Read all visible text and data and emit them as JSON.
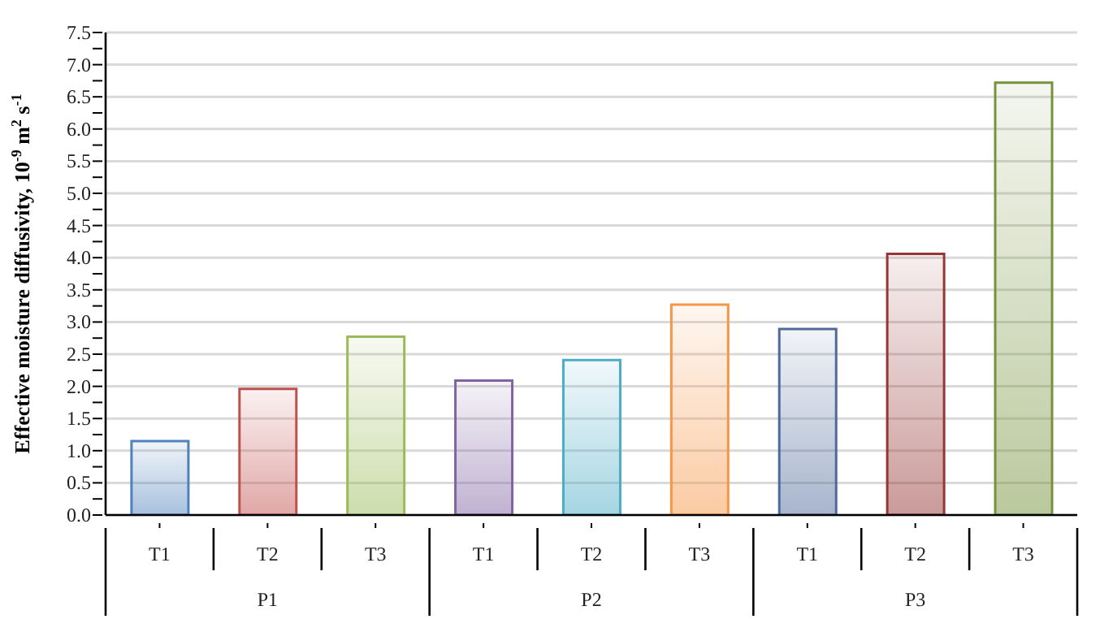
{
  "chart_data": {
    "type": "bar",
    "ylabel": "Effective moisture diffusivity, 10$^{-9}$ m$^{2}$ s$^{-1}$",
    "categories": [
      "T1",
      "T2",
      "T3",
      "T1",
      "T2",
      "T3",
      "T1",
      "T2",
      "T3"
    ],
    "values": [
      1.15,
      1.96,
      2.77,
      2.09,
      2.41,
      3.27,
      2.89,
      4.06,
      6.72
    ],
    "colors": [
      "#4f81bd",
      "#c0504d",
      "#9bbb59",
      "#8064a2",
      "#4bacc6",
      "#f79646",
      "#4f6a9a",
      "#943634",
      "#76923c"
    ],
    "annotations": [
      "P1",
      "P2",
      "P3"
    ],
    "ylim": [
      0,
      7.5
    ],
    "yticks": [
      {
        "value": 0,
        "label": "0.0"
      },
      {
        "value": 0.25,
        "label": null
      },
      {
        "value": 0.5,
        "label": "0.5"
      },
      {
        "value": 0.75,
        "label": null
      },
      {
        "value": 1,
        "label": "1.0"
      },
      {
        "value": 1.25,
        "label": null
      },
      {
        "value": 1.5,
        "label": "1.5"
      },
      {
        "value": 1.75,
        "label": null
      },
      {
        "value": 2,
        "label": "2.0"
      },
      {
        "value": 2.25,
        "label": null
      },
      {
        "value": 2.5,
        "label": "2.5"
      },
      {
        "value": 2.75,
        "label": null
      },
      {
        "value": 3,
        "label": "3.0"
      },
      {
        "value": 3.25,
        "label": null
      },
      {
        "value": 3.5,
        "label": "3.5"
      },
      {
        "value": 3.75,
        "label": null
      },
      {
        "value": 4,
        "label": "4.0"
      },
      {
        "value": 4.25,
        "label": null
      },
      {
        "value": 4.5,
        "label": "4.5"
      },
      {
        "value": 4.75,
        "label": null
      },
      {
        "value": 5,
        "label": "5.0"
      },
      {
        "value": 5.25,
        "label": null
      },
      {
        "value": 5.5,
        "label": "5.5"
      },
      {
        "value": 5.75,
        "label": null
      },
      {
        "value": 6,
        "label": "6.0"
      },
      {
        "value": 6.25,
        "label": null
      },
      {
        "value": 6.5,
        "label": "6.5"
      },
      {
        "value": 6.75,
        "label": null
      },
      {
        "value": 7,
        "label": "7.0"
      },
      {
        "value": 7.25,
        "label": null
      },
      {
        "value": 7.5,
        "label": "7.5"
      }
    ],
    "grid": "y",
    "legend": false
  }
}
